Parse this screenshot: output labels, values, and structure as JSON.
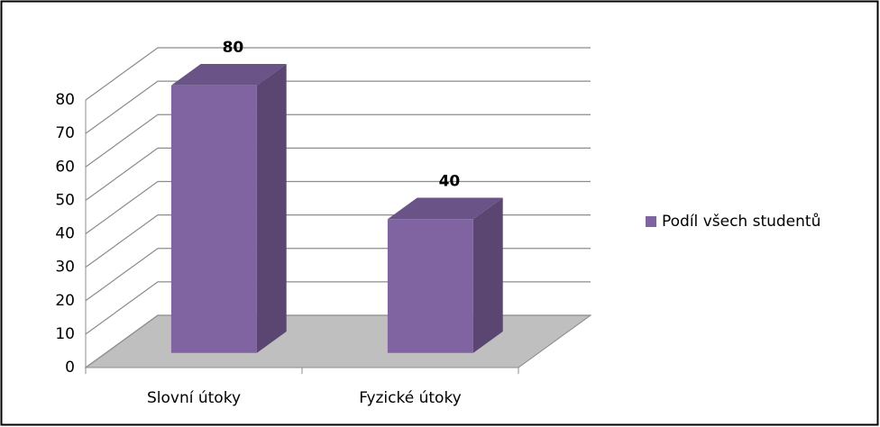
{
  "chart_data": {
    "type": "bar3d",
    "categories": [
      "Slovní útoky",
      "Fyzické útoky"
    ],
    "series": [
      {
        "name": "Podíl všech studentů",
        "color": "#8064a2",
        "values": [
          80,
          40
        ]
      }
    ],
    "ylim": [
      0,
      80
    ],
    "yticks": [
      0,
      10,
      20,
      30,
      40,
      50,
      60,
      70,
      80
    ],
    "grid": true,
    "legend": "right"
  }
}
